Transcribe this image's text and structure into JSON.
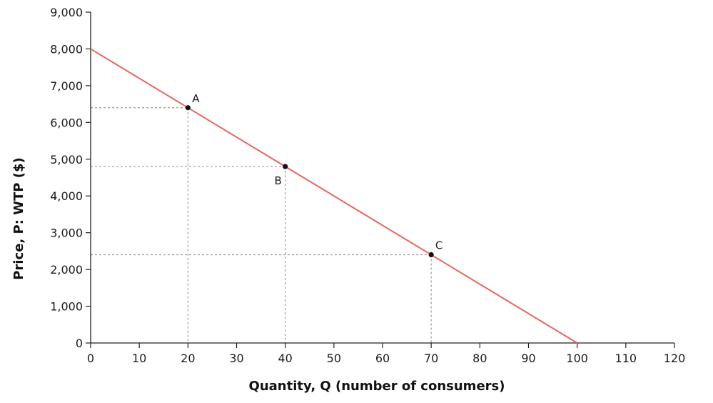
{
  "chart_data": {
    "type": "line",
    "xlabel": "Quantity, Q (number of consumers)",
    "ylabel": "Price, P: WTP ($)",
    "xlim": [
      0,
      120
    ],
    "ylim": [
      0,
      9000
    ],
    "x_ticks": [
      0,
      10,
      20,
      30,
      40,
      50,
      60,
      70,
      80,
      90,
      100,
      110,
      120
    ],
    "x_tick_labels": [
      "0",
      "10",
      "20",
      "30",
      "40",
      "50",
      "60",
      "70",
      "80",
      "90",
      "100",
      "110",
      "120"
    ],
    "y_ticks": [
      0,
      1000,
      2000,
      3000,
      4000,
      5000,
      6000,
      7000,
      8000,
      9000
    ],
    "y_tick_labels": [
      "0",
      "1,000",
      "2,000",
      "3,000",
      "4,000",
      "5,000",
      "6,000",
      "7,000",
      "8,000",
      "9,000"
    ],
    "grid": false,
    "series": [
      {
        "x": [
          0,
          100
        ],
        "y": [
          8000,
          0
        ],
        "color": "#e8675e"
      }
    ],
    "points": [
      {
        "label": "A",
        "x": 20,
        "y": 6400,
        "label_pos": "above-right"
      },
      {
        "label": "B",
        "x": 40,
        "y": 4800,
        "label_pos": "below-left"
      },
      {
        "label": "C",
        "x": 70,
        "y": 2400,
        "label_pos": "above-right"
      }
    ],
    "guide_color": "#9a9a9a",
    "axis_color": "#222222"
  }
}
